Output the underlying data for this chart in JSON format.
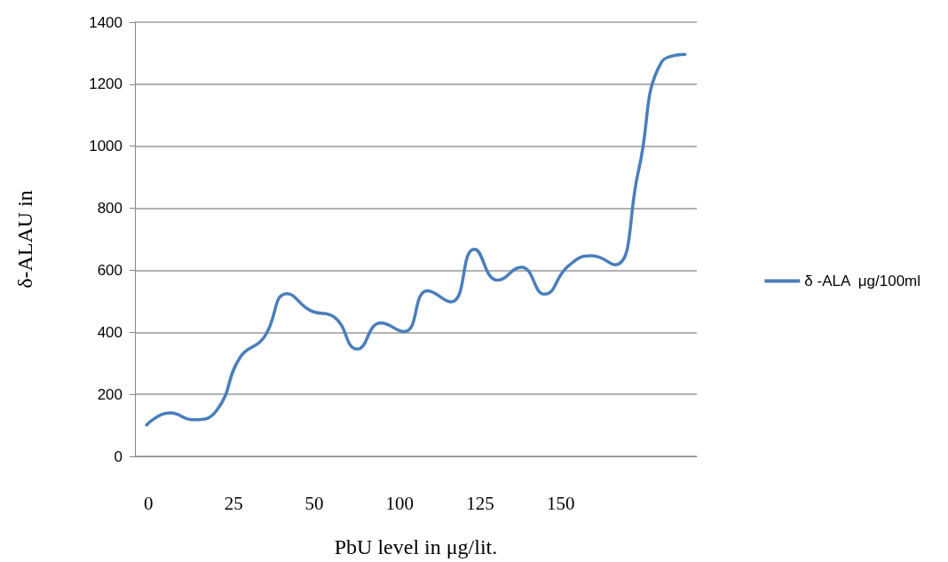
{
  "chart_data": {
    "type": "line",
    "ylabel": "δ-ALAU in",
    "xlabel": "PbU level in μg/lit.",
    "categories": [
      null,
      null,
      null,
      null,
      null,
      null,
      null,
      null,
      null,
      null,
      null,
      null,
      null,
      null,
      null,
      null,
      null,
      null,
      null,
      null,
      null,
      null,
      null,
      null
    ],
    "series": [
      {
        "name": "δ -ALA  μg/100ml",
        "color": "#4a7ebb",
        "values": [
          101,
          140,
          118,
          149,
          320,
          382,
          525,
          470,
          450,
          346,
          430,
          402,
          534,
          498,
          668,
          568,
          610,
          523,
          613,
          647,
          618,
          917,
          1272,
          1296
        ]
      }
    ],
    "ylim": [
      0,
      1400
    ],
    "yticks": [
      0,
      200,
      400,
      600,
      800,
      1000,
      1200,
      1400
    ],
    "grid": "y",
    "legend": "right",
    "marker": "none",
    "annotations": [
      "0",
      "25",
      "50",
      "100",
      "125",
      "150"
    ]
  }
}
